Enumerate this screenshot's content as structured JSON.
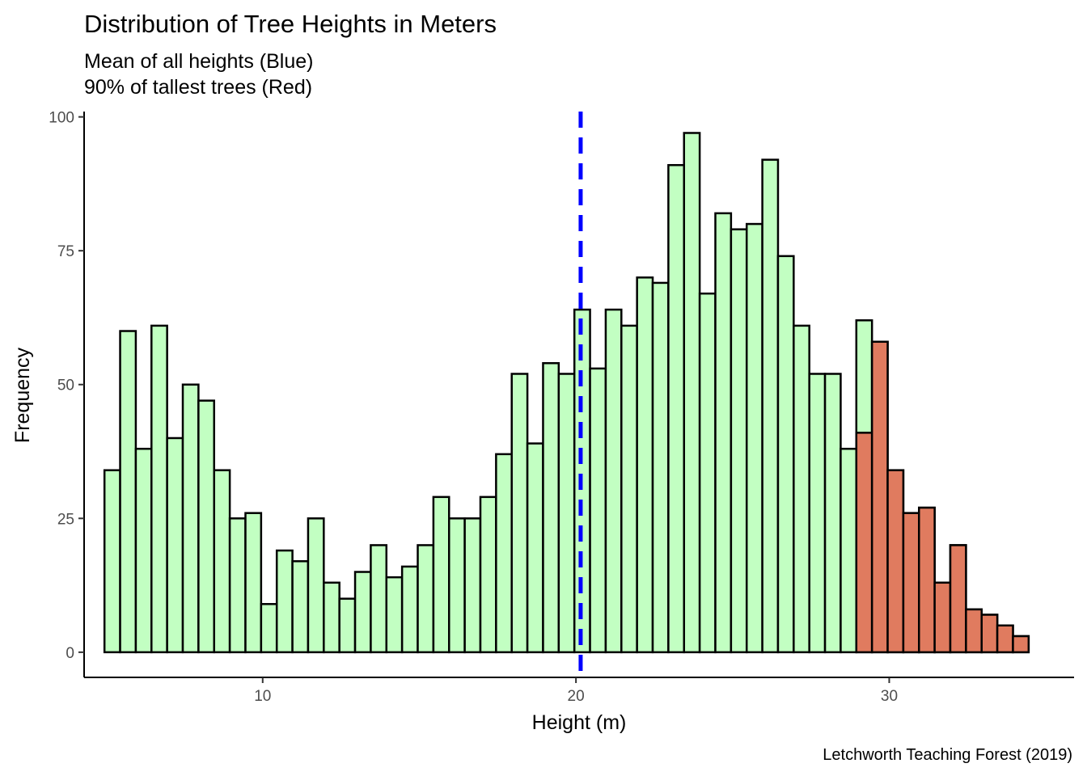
{
  "chart_data": {
    "type": "bar",
    "title": "Distribution of Tree Heights in Meters",
    "subtitle_lines": [
      "Mean of all heights (Blue)",
      "90% of tallest trees (Red)"
    ],
    "xlabel": "Height (m)",
    "ylabel": "Frequency",
    "caption": "Letchworth Teaching Forest (2019)",
    "xlim": [
      4.3,
      35.9
    ],
    "ylim": [
      -4.7,
      101
    ],
    "x_ticks": [
      10,
      20,
      30
    ],
    "y_ticks": [
      0,
      25,
      50,
      75,
      100
    ],
    "bin_start": 4.95,
    "bin_width": 0.5,
    "values": [
      34,
      60,
      38,
      61,
      40,
      50,
      47,
      34,
      25,
      26,
      9,
      19,
      17,
      25,
      13,
      10,
      15,
      20,
      14,
      16,
      20,
      29,
      25,
      25,
      29,
      37,
      52,
      39,
      54,
      52,
      64,
      53,
      64,
      61,
      70,
      69,
      91,
      97,
      67,
      82,
      79,
      80,
      92,
      74,
      61,
      52,
      52,
      38,
      62,
      58,
      34,
      26,
      27,
      13,
      20,
      8,
      7,
      5,
      3
    ],
    "highlight_series": {
      "name": "90% of tallest trees",
      "start_index": 47,
      "values": [
        0,
        41,
        58,
        34,
        26,
        27,
        13,
        20,
        8,
        7,
        5,
        3
      ]
    },
    "mean_line_x": 20.15,
    "grid": false,
    "legend": "none",
    "colors": {
      "bar_fill": "#c2ffc2",
      "highlight_fill": "#e07b5f",
      "bar_stroke": "#000000",
      "mean_line": "#0000ff"
    }
  }
}
